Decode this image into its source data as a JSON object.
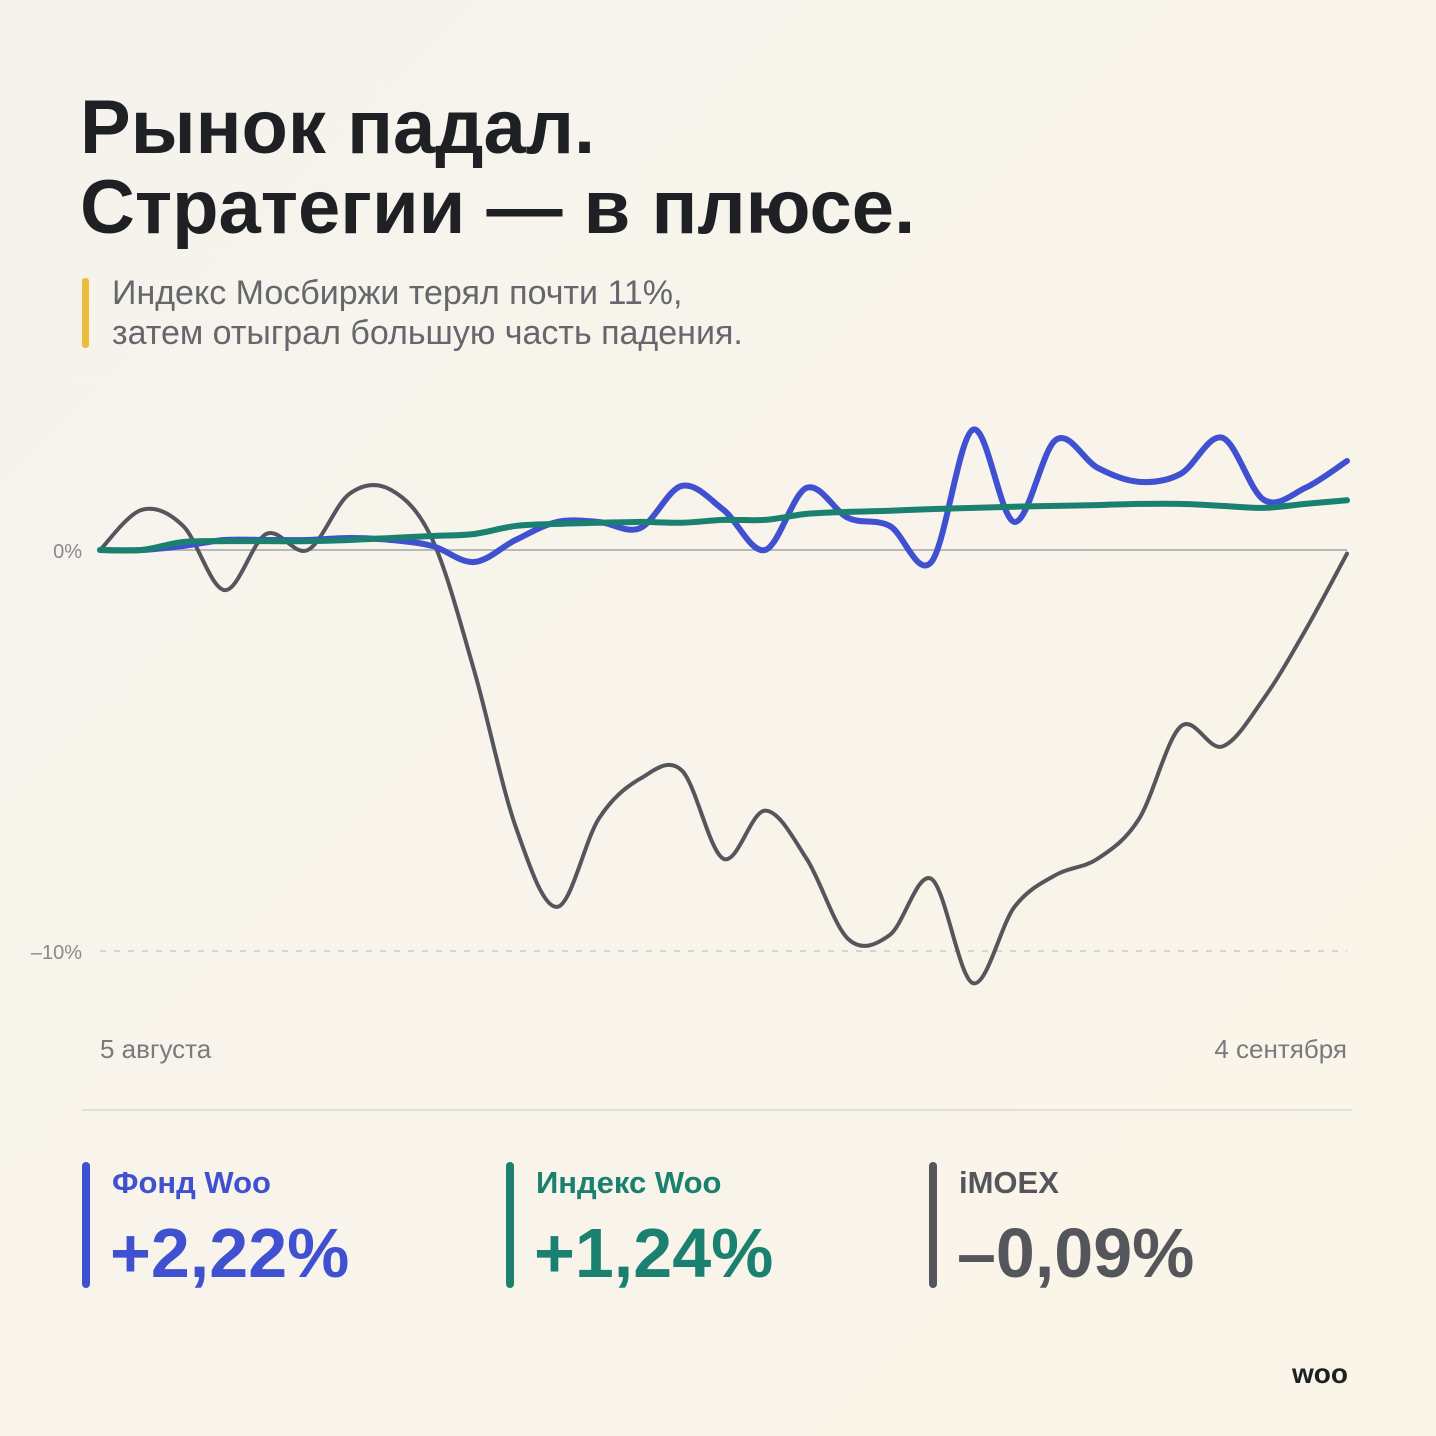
{
  "chart_data": {
    "type": "line",
    "title": [
      "Рынок падал.",
      "Стратегии — в плюсе."
    ],
    "subtitle": [
      "Индекс Мосбиржи терял почти 11%,",
      "затем отыграл большую часть падения."
    ],
    "categories": [
      "5 августа",
      null,
      null,
      null,
      null,
      null,
      null,
      null,
      null,
      null,
      null,
      null,
      null,
      null,
      null,
      null,
      null,
      null,
      null,
      null,
      null,
      null,
      null,
      null,
      null,
      null,
      null,
      null,
      null,
      null,
      "4 сентября"
    ],
    "ylim": [
      -11.5,
      3.5
    ],
    "yticks": [
      {
        "value": 0,
        "label": "0%"
      },
      {
        "value": -10,
        "label": "–10%"
      }
    ],
    "grid": true,
    "series": [
      {
        "name": "Фонд Woo",
        "color": "#3f51d0",
        "change": 2.22,
        "change_label": "+2,22%",
        "values": [
          0,
          0,
          0.1,
          0.25,
          0.25,
          0.25,
          0.3,
          0.25,
          0.1,
          -0.3,
          0.25,
          0.7,
          0.7,
          0.55,
          1.6,
          1.0,
          0,
          1.55,
          0.8,
          0.6,
          -0.3,
          3.0,
          0.7,
          2.75,
          2.05,
          1.7,
          1.9,
          2.8,
          1.25,
          1.55,
          2.22
        ]
      },
      {
        "name": "Индекс Woo",
        "color": "#1a8070",
        "change": 1.24,
        "change_label": "+1,24%",
        "values": [
          0,
          0,
          0.2,
          0.22,
          0.22,
          0.22,
          0.25,
          0.3,
          0.35,
          0.4,
          0.6,
          0.65,
          0.68,
          0.7,
          0.68,
          0.75,
          0.75,
          0.9,
          0.95,
          0.98,
          1.02,
          1.05,
          1.08,
          1.1,
          1.12,
          1.15,
          1.15,
          1.1,
          1.05,
          1.15,
          1.24
        ]
      },
      {
        "name": "iMOEX",
        "color": "#55565c",
        "change": -0.09,
        "change_label": "–0,09%",
        "values": [
          0,
          1.0,
          0.6,
          -1.0,
          0.4,
          0,
          1.4,
          1.5,
          0.25,
          -3.0,
          -6.9,
          -8.9,
          -6.7,
          -5.7,
          -5.5,
          -7.7,
          -6.5,
          -7.7,
          -9.7,
          -9.6,
          -8.2,
          -10.8,
          -8.9,
          -8.1,
          -7.7,
          -6.7,
          -4.4,
          -4.9,
          -3.7,
          -2.0,
          -0.09
        ]
      }
    ],
    "brand": "woo"
  }
}
